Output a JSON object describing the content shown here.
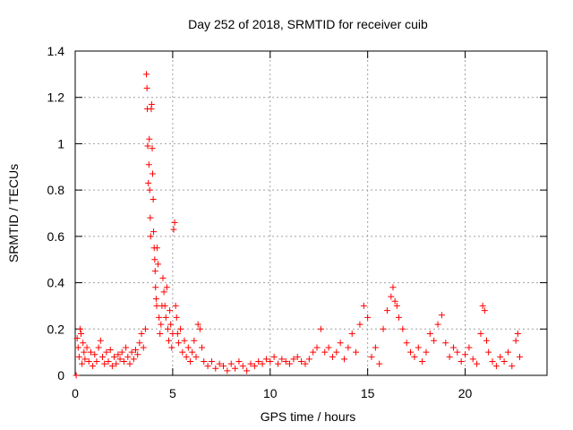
{
  "chart_data": {
    "type": "scatter",
    "title": "Day 252 of 2018, SRMTID for receiver cuib",
    "xlabel": "GPS time / hours",
    "ylabel": "SRMTID / TECUs",
    "xlim": [
      0,
      24.2
    ],
    "ylim": [
      0,
      1.4
    ],
    "xticks": [
      0,
      5,
      10,
      15,
      20
    ],
    "xtick_labels": [
      "0",
      "5",
      "10",
      "15",
      "20"
    ],
    "yticks": [
      0,
      0.2,
      0.4,
      0.6,
      0.8,
      1,
      1.2,
      1.4
    ],
    "ytick_labels": [
      "0",
      "0.2",
      "0.4",
      "0.6",
      "0.8",
      "1",
      "1.2",
      "1.4"
    ],
    "grid": true,
    "marker": "+",
    "color": "#ff0000",
    "series": [
      {
        "name": "SRMTID",
        "points": [
          [
            0.05,
            0.0
          ],
          [
            0.1,
            0.16
          ],
          [
            0.15,
            0.12
          ],
          [
            0.2,
            0.08
          ],
          [
            0.25,
            0.2
          ],
          [
            0.3,
            0.18
          ],
          [
            0.35,
            0.05
          ],
          [
            0.4,
            0.14
          ],
          [
            0.45,
            0.1
          ],
          [
            0.5,
            0.07
          ],
          [
            0.6,
            0.12
          ],
          [
            0.7,
            0.06
          ],
          [
            0.8,
            0.1
          ],
          [
            0.9,
            0.04
          ],
          [
            1.0,
            0.09
          ],
          [
            1.1,
            0.06
          ],
          [
            1.2,
            0.12
          ],
          [
            1.3,
            0.15
          ],
          [
            1.4,
            0.08
          ],
          [
            1.5,
            0.05
          ],
          [
            1.6,
            0.1
          ],
          [
            1.7,
            0.06
          ],
          [
            1.8,
            0.11
          ],
          [
            1.9,
            0.04
          ],
          [
            2.0,
            0.08
          ],
          [
            2.1,
            0.05
          ],
          [
            2.2,
            0.09
          ],
          [
            2.3,
            0.07
          ],
          [
            2.4,
            0.1
          ],
          [
            2.5,
            0.06
          ],
          [
            2.6,
            0.12
          ],
          [
            2.7,
            0.08
          ],
          [
            2.8,
            0.05
          ],
          [
            2.9,
            0.1
          ],
          [
            3.0,
            0.07
          ],
          [
            3.1,
            0.11
          ],
          [
            3.2,
            0.09
          ],
          [
            3.3,
            0.14
          ],
          [
            3.4,
            0.18
          ],
          [
            3.5,
            0.12
          ],
          [
            3.6,
            0.2
          ],
          [
            3.65,
            1.3
          ],
          [
            3.68,
            1.24
          ],
          [
            3.7,
            1.15
          ],
          [
            3.72,
            0.99
          ],
          [
            3.75,
            0.83
          ],
          [
            3.78,
            0.91
          ],
          [
            3.8,
            1.02
          ],
          [
            3.82,
            0.8
          ],
          [
            3.85,
            0.68
          ],
          [
            3.87,
            0.6
          ],
          [
            3.9,
            1.15
          ],
          [
            3.92,
            1.17
          ],
          [
            3.95,
            0.98
          ],
          [
            3.97,
            0.87
          ],
          [
            4.0,
            0.76
          ],
          [
            4.02,
            0.62
          ],
          [
            4.05,
            0.55
          ],
          [
            4.08,
            0.5
          ],
          [
            4.1,
            0.45
          ],
          [
            4.12,
            0.38
          ],
          [
            4.15,
            0.33
          ],
          [
            4.18,
            0.3
          ],
          [
            4.2,
            0.55
          ],
          [
            4.25,
            0.48
          ],
          [
            4.3,
            0.25
          ],
          [
            4.35,
            0.18
          ],
          [
            4.4,
            0.22
          ],
          [
            4.45,
            0.3
          ],
          [
            4.5,
            0.42
          ],
          [
            4.55,
            0.36
          ],
          [
            4.6,
            0.3
          ],
          [
            4.65,
            0.25
          ],
          [
            4.7,
            0.38
          ],
          [
            4.75,
            0.2
          ],
          [
            4.8,
            0.15
          ],
          [
            4.85,
            0.28
          ],
          [
            4.9,
            0.22
          ],
          [
            4.95,
            0.12
          ],
          [
            5.0,
            0.18
          ],
          [
            5.05,
            0.63
          ],
          [
            5.1,
            0.66
          ],
          [
            5.15,
            0.3
          ],
          [
            5.2,
            0.25
          ],
          [
            5.25,
            0.18
          ],
          [
            5.3,
            0.14
          ],
          [
            5.4,
            0.2
          ],
          [
            5.5,
            0.1
          ],
          [
            5.6,
            0.15
          ],
          [
            5.7,
            0.08
          ],
          [
            5.8,
            0.12
          ],
          [
            5.9,
            0.06
          ],
          [
            6.0,
            0.1
          ],
          [
            6.1,
            0.15
          ],
          [
            6.2,
            0.08
          ],
          [
            6.3,
            0.22
          ],
          [
            6.4,
            0.2
          ],
          [
            6.5,
            0.12
          ],
          [
            6.6,
            0.06
          ],
          [
            6.8,
            0.04
          ],
          [
            7.0,
            0.06
          ],
          [
            7.2,
            0.03
          ],
          [
            7.4,
            0.05
          ],
          [
            7.6,
            0.04
          ],
          [
            7.8,
            0.02
          ],
          [
            8.0,
            0.05
          ],
          [
            8.2,
            0.03
          ],
          [
            8.4,
            0.06
          ],
          [
            8.6,
            0.04
          ],
          [
            8.8,
            0.02
          ],
          [
            9.0,
            0.05
          ],
          [
            9.2,
            0.04
          ],
          [
            9.4,
            0.06
          ],
          [
            9.6,
            0.05
          ],
          [
            9.8,
            0.07
          ],
          [
            10.0,
            0.06
          ],
          [
            10.2,
            0.08
          ],
          [
            10.4,
            0.05
          ],
          [
            10.6,
            0.07
          ],
          [
            10.8,
            0.06
          ],
          [
            11.0,
            0.05
          ],
          [
            11.2,
            0.07
          ],
          [
            11.4,
            0.08
          ],
          [
            11.6,
            0.06
          ],
          [
            11.8,
            0.05
          ],
          [
            12.0,
            0.07
          ],
          [
            12.2,
            0.1
          ],
          [
            12.4,
            0.12
          ],
          [
            12.6,
            0.2
          ],
          [
            12.8,
            0.1
          ],
          [
            13.0,
            0.12
          ],
          [
            13.2,
            0.08
          ],
          [
            13.4,
            0.1
          ],
          [
            13.6,
            0.14
          ],
          [
            13.8,
            0.07
          ],
          [
            14.0,
            0.12
          ],
          [
            14.2,
            0.18
          ],
          [
            14.4,
            0.1
          ],
          [
            14.6,
            0.22
          ],
          [
            14.8,
            0.3
          ],
          [
            15.0,
            0.25
          ],
          [
            15.2,
            0.08
          ],
          [
            15.4,
            0.12
          ],
          [
            15.6,
            0.05
          ],
          [
            15.8,
            0.2
          ],
          [
            16.0,
            0.28
          ],
          [
            16.2,
            0.34
          ],
          [
            16.3,
            0.38
          ],
          [
            16.4,
            0.32
          ],
          [
            16.5,
            0.3
          ],
          [
            16.6,
            0.25
          ],
          [
            16.8,
            0.2
          ],
          [
            17.0,
            0.14
          ],
          [
            17.2,
            0.1
          ],
          [
            17.4,
            0.08
          ],
          [
            17.6,
            0.12
          ],
          [
            17.8,
            0.06
          ],
          [
            18.0,
            0.1
          ],
          [
            18.2,
            0.18
          ],
          [
            18.4,
            0.15
          ],
          [
            18.6,
            0.22
          ],
          [
            18.8,
            0.26
          ],
          [
            19.0,
            0.14
          ],
          [
            19.2,
            0.08
          ],
          [
            19.4,
            0.12
          ],
          [
            19.6,
            0.1
          ],
          [
            19.8,
            0.06
          ],
          [
            20.0,
            0.09
          ],
          [
            20.2,
            0.12
          ],
          [
            20.4,
            0.07
          ],
          [
            20.6,
            0.05
          ],
          [
            20.8,
            0.18
          ],
          [
            20.9,
            0.3
          ],
          [
            21.0,
            0.28
          ],
          [
            21.1,
            0.15
          ],
          [
            21.2,
            0.1
          ],
          [
            21.4,
            0.06
          ],
          [
            21.6,
            0.04
          ],
          [
            21.8,
            0.08
          ],
          [
            22.0,
            0.06
          ],
          [
            22.2,
            0.1
          ],
          [
            22.4,
            0.04
          ],
          [
            22.6,
            0.15
          ],
          [
            22.7,
            0.18
          ],
          [
            22.8,
            0.08
          ]
        ]
      }
    ]
  }
}
